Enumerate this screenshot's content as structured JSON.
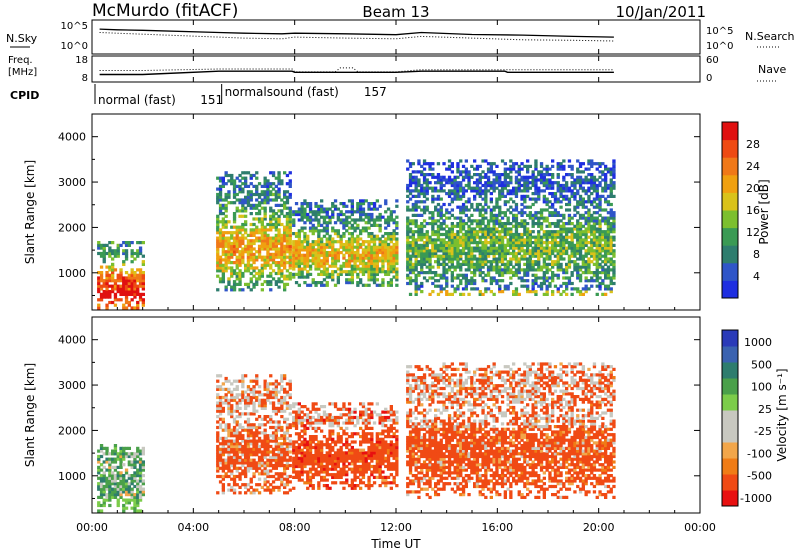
{
  "header": {
    "station": "McMurdo (fitACF)",
    "beam": "Beam 13",
    "date": "10/Jan/2011"
  },
  "top_panels": {
    "nsky_label": "N.Sky",
    "nsky_tick_hi": "10^5",
    "nsky_tick_lo": "10^0",
    "nsearch_label": "N.Search",
    "nsearch_tick_hi": "10^5",
    "nsearch_tick_lo": "10^0",
    "freq_label_1": "Freq.",
    "freq_label_2": "[MHz]",
    "freq_tick_hi": "18",
    "freq_tick_lo": "8",
    "nave_label": "Nave",
    "nave_tick_hi": "60",
    "nave_tick_lo": "0",
    "cpid_label": "CPID",
    "cpid_segments": [
      {
        "name": "normal (fast)",
        "id": "151",
        "start_h": 0.0,
        "end_h": 5.0
      },
      {
        "name": "normalsound (fast)",
        "id": "157",
        "start_h": 5.0,
        "end_h": 20.6
      }
    ]
  },
  "colors": {
    "frame": "#000000",
    "power_scale": [
      "#1f2fe0",
      "#2f55c8",
      "#2e7d6e",
      "#3a9a54",
      "#7cbf2e",
      "#d9c21a",
      "#f0a010",
      "#f07818",
      "#ee4a12",
      "#e01010"
    ],
    "velocity_scale": [
      "#e81010",
      "#f04a14",
      "#f07c16",
      "#f2a64a",
      "#c8c8c0",
      "#c8c8c0",
      "#7ccc4a",
      "#4aa04a",
      "#2e7d6e",
      "#3a62b0",
      "#2a3ab8"
    ]
  },
  "chart_data": [
    {
      "type": "line",
      "title": "N.Sky / N.Search",
      "x_range_h": [
        0,
        24
      ],
      "y_scale": "log",
      "ylim": [
        1,
        100000
      ],
      "series": [
        {
          "name": "N.Sky",
          "x": [
            0.3,
            1.0,
            2.0,
            5.0,
            6.0,
            7.5,
            8.0,
            10.0,
            12.0,
            13.0,
            15.0,
            17.0,
            19.0,
            20.6
          ],
          "values": [
            8000,
            6000,
            5000,
            2000,
            1500,
            1200,
            1500,
            1200,
            800,
            2000,
            900,
            700,
            400,
            300
          ]
        },
        {
          "name": "N.Search",
          "x": [
            0.3,
            1.0,
            2.0,
            5.0,
            6.0,
            7.5,
            8.0,
            10.0,
            12.0,
            13.0,
            15.0,
            17.0,
            19.0,
            20.6
          ],
          "values": [
            2000,
            1500,
            1000,
            300,
            200,
            150,
            300,
            200,
            150,
            400,
            200,
            100,
            80,
            60
          ]
        }
      ]
    },
    {
      "type": "line",
      "title": "Freq. [MHz] / Nave",
      "x_range_h": [
        0,
        24
      ],
      "ylim_freq": [
        8,
        18
      ],
      "ylim_nave": [
        0,
        60
      ],
      "series": [
        {
          "name": "Freq.",
          "x": [
            0.3,
            2.0,
            5.0,
            7.9,
            8.0,
            12.0,
            13.0,
            16.3,
            16.4,
            20.6
          ],
          "values": [
            10.5,
            10.5,
            12.0,
            12.0,
            11.5,
            11.5,
            12.0,
            12.0,
            11.5,
            11.5
          ]
        },
        {
          "name": "Nave",
          "x": [
            0.3,
            2.0,
            5.0,
            7.9,
            8.0,
            9.6,
            9.8,
            10.3,
            10.5,
            12.0,
            13.0,
            20.6
          ],
          "values": [
            26,
            26,
            30,
            30,
            22,
            22,
            33,
            33,
            22,
            22,
            28,
            28
          ]
        }
      ]
    },
    {
      "type": "heatmap",
      "title": "Power",
      "xlabel": "Time UT",
      "ylabel": "Slant Range [km]",
      "colorbar_label": "Power [dB]",
      "x_ticks": [
        "00:00",
        "04:00",
        "08:00",
        "12:00",
        "16:00",
        "20:00",
        "00:00"
      ],
      "x_range_h": [
        0,
        24
      ],
      "y_ticks": [
        1000,
        2000,
        3000,
        4000
      ],
      "ylim": [
        180,
        4500
      ],
      "colorbar_ticks": [
        4,
        8,
        12,
        16,
        20,
        24,
        28
      ],
      "colorbar_range": [
        0,
        32
      ],
      "echo_regions": [
        {
          "t0": 0.2,
          "t1": 2.0,
          "r0": 200,
          "r1": 1700,
          "power": 18
        },
        {
          "t0": 4.9,
          "t1": 7.8,
          "r0": 600,
          "r1": 3200,
          "power": 14
        },
        {
          "t0": 7.9,
          "t1": 12.0,
          "r0": 700,
          "r1": 2600,
          "power": 13
        },
        {
          "t0": 12.4,
          "t1": 20.6,
          "r0": 500,
          "r1": 3500,
          "power": 9
        }
      ]
    },
    {
      "type": "heatmap",
      "title": "Velocity",
      "xlabel": "Time UT",
      "ylabel": "Slant Range [km]",
      "colorbar_label": "Velocity [m s⁻¹]",
      "x_ticks": [
        "00:00",
        "04:00",
        "08:00",
        "12:00",
        "16:00",
        "20:00",
        "00:00"
      ],
      "x_range_h": [
        0,
        24
      ],
      "y_ticks": [
        1000,
        2000,
        3000,
        4000
      ],
      "ylim": [
        180,
        4500
      ],
      "colorbar_ticks": [
        "1000",
        "500",
        "100",
        "25",
        "-25",
        "-100",
        "-500",
        "-1000"
      ],
      "echo_regions": [
        {
          "t0": 0.2,
          "t1": 2.0,
          "r0": 200,
          "r1": 1700,
          "velocity": 200
        },
        {
          "t0": 4.9,
          "t1": 7.8,
          "r0": 600,
          "r1": 3200,
          "velocity": -200
        },
        {
          "t0": 7.9,
          "t1": 12.0,
          "r0": 700,
          "r1": 2600,
          "velocity": -300
        },
        {
          "t0": 12.4,
          "t1": 20.6,
          "r0": 500,
          "r1": 3500,
          "velocity": -250
        }
      ]
    }
  ]
}
